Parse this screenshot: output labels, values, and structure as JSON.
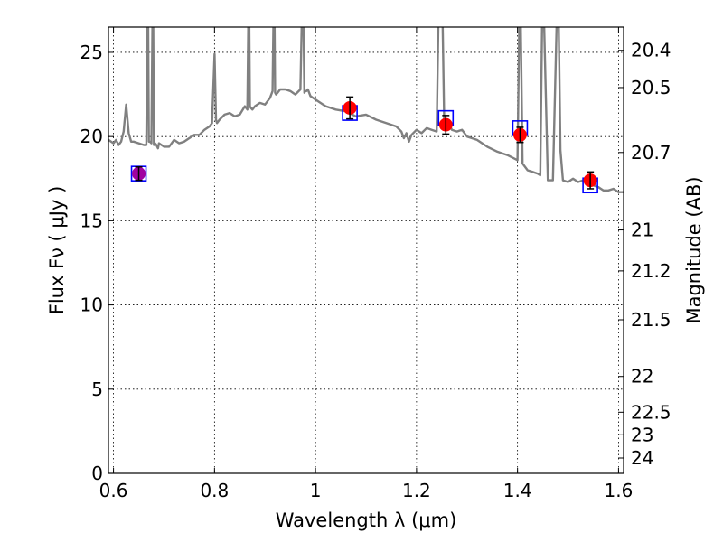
{
  "chart_data": {
    "type": "line",
    "xlabel": "Wavelength  λ (μm)",
    "ylabel": "Flux  Fν  ( μJy )",
    "y2label": "Magnitude (AB)",
    "xlim": [
      0.59,
      1.61
    ],
    "ylim": [
      0,
      26.5
    ],
    "xticks": [
      "0.6",
      "0.8",
      "1",
      "1.2",
      "1.4",
      "1.6"
    ],
    "xtick_values": [
      0.6,
      0.8,
      1.0,
      1.2,
      1.4,
      1.6
    ],
    "yticks": [
      "0",
      "5",
      "10",
      "15",
      "20",
      "25"
    ],
    "ytick_values": [
      0,
      5,
      10,
      15,
      20,
      25
    ],
    "mag_ticks": [
      "20.4",
      "20.5",
      "20.7",
      "21",
      "21.2",
      "21.5",
      "22",
      "22.5",
      "23",
      "24"
    ],
    "mag_tick_values": [
      20.4,
      20.5,
      20.7,
      21,
      21.2,
      21.5,
      22,
      22.5,
      23,
      24
    ],
    "grid": true,
    "colors": {
      "model_line": "#808080",
      "observed": "#ff0000",
      "model_photometry": "#0000ff",
      "overlap": "#a000a0",
      "error_bar": "#000000"
    },
    "model_spectrum": {
      "x": [
        0.585,
        0.6,
        0.605,
        0.61,
        0.615,
        0.62,
        0.625,
        0.63,
        0.632,
        0.635,
        0.64,
        0.65,
        0.66,
        0.665,
        0.668,
        0.67,
        0.672,
        0.675,
        0.678,
        0.68,
        0.682,
        0.685,
        0.688,
        0.69,
        0.695,
        0.7,
        0.71,
        0.72,
        0.73,
        0.74,
        0.75,
        0.76,
        0.77,
        0.78,
        0.79,
        0.795,
        0.8,
        0.803,
        0.805,
        0.81,
        0.82,
        0.83,
        0.84,
        0.85,
        0.86,
        0.865,
        0.868,
        0.87,
        0.872,
        0.875,
        0.88,
        0.89,
        0.9,
        0.91,
        0.915,
        0.918,
        0.92,
        0.922,
        0.925,
        0.93,
        0.94,
        0.95,
        0.96,
        0.97,
        0.975,
        0.978,
        0.98,
        0.982,
        0.985,
        0.99,
        1.0,
        1.02,
        1.04,
        1.06,
        1.08,
        1.1,
        1.12,
        1.14,
        1.16,
        1.17,
        1.175,
        1.18,
        1.185,
        1.19,
        1.2,
        1.21,
        1.22,
        1.23,
        1.24,
        1.245,
        1.25,
        1.255,
        1.26,
        1.27,
        1.28,
        1.29,
        1.3,
        1.32,
        1.34,
        1.36,
        1.38,
        1.4,
        1.405,
        1.41,
        1.42,
        1.43,
        1.44,
        1.445,
        1.45,
        1.46,
        1.47,
        1.48,
        1.485,
        1.49,
        1.5,
        1.51,
        1.52,
        1.53,
        1.54,
        1.55,
        1.56,
        1.57,
        1.58,
        1.59,
        1.6,
        1.61
      ],
      "y": [
        19.9,
        19.6,
        19.8,
        19.5,
        19.7,
        20.3,
        21.9,
        20.2,
        20.0,
        19.7,
        19.7,
        19.6,
        19.5,
        19.5,
        30,
        19.7,
        19.7,
        19.6,
        30,
        19.5,
        19.6,
        19.5,
        19.3,
        19.6,
        19.5,
        19.4,
        19.4,
        19.8,
        19.6,
        19.7,
        19.9,
        20.1,
        20.1,
        20.4,
        20.6,
        20.8,
        24.9,
        21.0,
        20.8,
        21.0,
        21.3,
        21.4,
        21.2,
        21.3,
        21.8,
        21.6,
        30,
        21.8,
        21.7,
        21.6,
        21.8,
        22.0,
        21.9,
        22.3,
        22.7,
        30,
        22.6,
        22.5,
        22.6,
        22.8,
        22.8,
        22.7,
        22.5,
        22.8,
        30,
        22.6,
        22.7,
        22.7,
        22.8,
        22.4,
        22.2,
        21.8,
        21.6,
        21.5,
        21.2,
        21.3,
        21.0,
        20.8,
        20.6,
        20.3,
        19.9,
        20.2,
        19.7,
        20.1,
        20.4,
        20.2,
        20.5,
        20.4,
        20.3,
        30,
        30,
        20.6,
        21.0,
        20.4,
        20.3,
        20.4,
        20.0,
        19.8,
        19.4,
        19.1,
        18.9,
        18.6,
        30,
        18.4,
        18.0,
        17.9,
        17.8,
        17.7,
        30,
        17.4,
        17.4,
        30,
        19.2,
        17.4,
        17.3,
        17.5,
        17.3,
        17.4,
        17.1,
        17.1,
        17.0,
        16.8,
        16.8,
        16.9,
        16.7,
        16.7
      ]
    },
    "points": [
      {
        "x": 0.65,
        "observed": 17.8,
        "error": 0.4,
        "model": 17.8
      },
      {
        "x": 1.068,
        "observed": 21.7,
        "error": 0.65,
        "model": 21.4
      },
      {
        "x": 1.258,
        "observed": 20.7,
        "error": 0.55,
        "model": 21.1
      },
      {
        "x": 1.405,
        "observed": 20.1,
        "error": 0.45,
        "model": 20.5
      },
      {
        "x": 1.544,
        "observed": 17.4,
        "error": 0.5,
        "model": 17.1
      }
    ]
  }
}
